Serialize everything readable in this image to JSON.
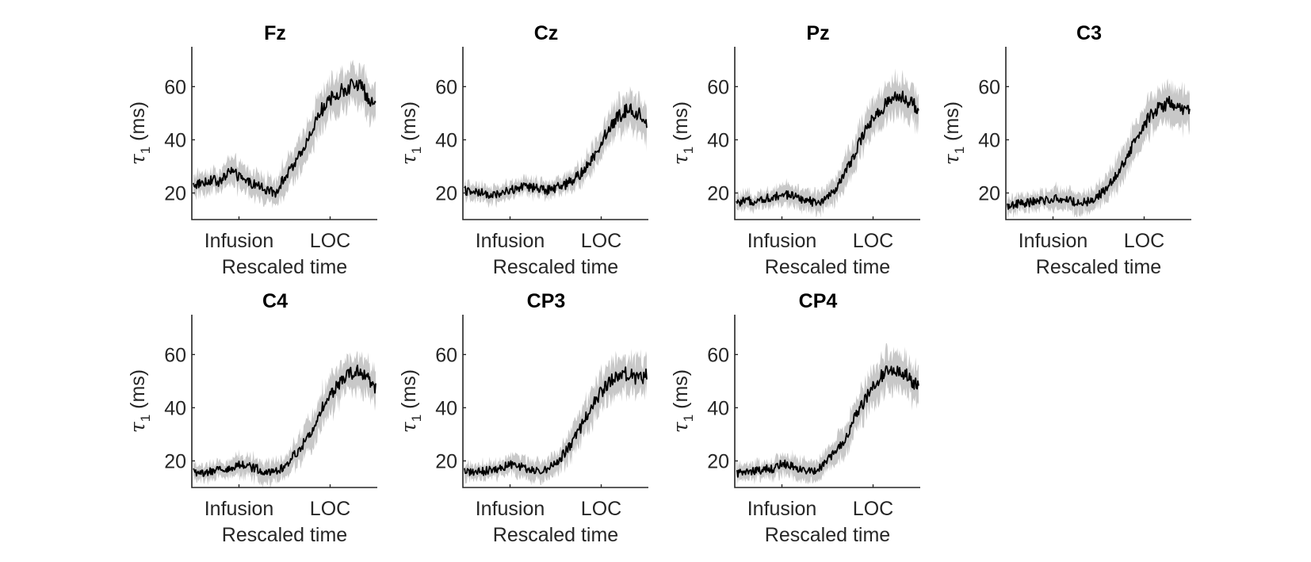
{
  "chart_data": {
    "type": "line",
    "layout": "small-multiples",
    "xlabel": "Rescaled time",
    "xtick_labels": [
      "Infusion",
      "LOC"
    ],
    "ylabel": "τ1 (ms)",
    "ylabel_parts": {
      "symbol": "τ",
      "subscript": "1",
      "unit": "(ms)"
    },
    "ylim": [
      10,
      75
    ],
    "yticks": [
      20,
      40,
      60
    ],
    "grid": false,
    "line_color": "#000000",
    "band_color": "#c8c8c8",
    "panels": [
      {
        "title": "Fz",
        "x": [
          0,
          0.05,
          0.1,
          0.15,
          0.2,
          0.25,
          0.3,
          0.35,
          0.4,
          0.45,
          0.5,
          0.55,
          0.6,
          0.65,
          0.7,
          0.75,
          0.8,
          0.85,
          0.9,
          0.95,
          1.0
        ],
        "mean": [
          23,
          24,
          25,
          24,
          29,
          26,
          24,
          23,
          21,
          20,
          26,
          30,
          36,
          44,
          51,
          55,
          58,
          60,
          61,
          57,
          53
        ],
        "band_halfwidth": [
          4,
          4,
          4,
          4,
          5,
          5,
          5,
          5,
          5,
          5,
          6,
          6,
          7,
          7,
          7,
          7,
          7,
          7,
          7,
          7,
          7
        ]
      },
      {
        "title": "Cz",
        "x": [
          0,
          0.05,
          0.1,
          0.15,
          0.2,
          0.25,
          0.3,
          0.35,
          0.4,
          0.45,
          0.5,
          0.55,
          0.6,
          0.65,
          0.7,
          0.75,
          0.8,
          0.85,
          0.9,
          0.95,
          1.0
        ],
        "mean": [
          21,
          20,
          20,
          19,
          20,
          21,
          22,
          22,
          22,
          21,
          22,
          23,
          25,
          28,
          33,
          39,
          45,
          49,
          52,
          50,
          47
        ],
        "band_halfwidth": [
          3,
          3,
          3,
          3,
          3,
          3,
          3,
          3,
          3,
          3,
          3,
          3,
          4,
          4,
          5,
          5,
          6,
          6,
          7,
          7,
          7
        ]
      },
      {
        "title": "Pz",
        "x": [
          0,
          0.05,
          0.1,
          0.15,
          0.2,
          0.25,
          0.3,
          0.35,
          0.4,
          0.45,
          0.5,
          0.55,
          0.6,
          0.65,
          0.7,
          0.75,
          0.8,
          0.85,
          0.9,
          0.95,
          1.0
        ],
        "mean": [
          16,
          17,
          17,
          18,
          18,
          20,
          19,
          18,
          17,
          16,
          18,
          22,
          28,
          35,
          42,
          48,
          52,
          55,
          56,
          54,
          52
        ],
        "band_halfwidth": [
          3,
          3,
          3,
          3,
          3,
          4,
          4,
          4,
          4,
          4,
          4,
          5,
          6,
          6,
          7,
          7,
          7,
          7,
          7,
          7,
          7
        ]
      },
      {
        "title": "C3",
        "x": [
          0,
          0.05,
          0.1,
          0.15,
          0.2,
          0.25,
          0.3,
          0.35,
          0.4,
          0.45,
          0.5,
          0.55,
          0.6,
          0.65,
          0.7,
          0.75,
          0.8,
          0.85,
          0.9,
          0.95,
          1.0
        ],
        "mean": [
          15,
          16,
          16,
          17,
          17,
          18,
          18,
          17,
          16,
          17,
          19,
          22,
          27,
          33,
          40,
          46,
          50,
          53,
          54,
          51,
          51
        ],
        "band_halfwidth": [
          3,
          3,
          3,
          3,
          3,
          4,
          4,
          4,
          4,
          4,
          4,
          5,
          6,
          6,
          7,
          7,
          7,
          7,
          7,
          7,
          7
        ]
      },
      {
        "title": "C4",
        "x": [
          0,
          0.05,
          0.1,
          0.15,
          0.2,
          0.25,
          0.3,
          0.35,
          0.4,
          0.45,
          0.5,
          0.55,
          0.6,
          0.65,
          0.7,
          0.75,
          0.8,
          0.85,
          0.9,
          0.95,
          1.0
        ],
        "mean": [
          16,
          15,
          16,
          17,
          17,
          19,
          18,
          17,
          16,
          16,
          18,
          22,
          26,
          32,
          39,
          45,
          49,
          52,
          54,
          52,
          47
        ],
        "band_halfwidth": [
          3,
          3,
          3,
          3,
          3,
          4,
          4,
          4,
          4,
          4,
          4,
          5,
          6,
          6,
          7,
          7,
          7,
          7,
          7,
          7,
          7
        ]
      },
      {
        "title": "CP3",
        "x": [
          0,
          0.05,
          0.1,
          0.15,
          0.2,
          0.25,
          0.3,
          0.35,
          0.4,
          0.45,
          0.5,
          0.55,
          0.6,
          0.65,
          0.7,
          0.75,
          0.8,
          0.85,
          0.9,
          0.95,
          1.0
        ],
        "mean": [
          16,
          16,
          16,
          17,
          17,
          19,
          18,
          17,
          16,
          17,
          19,
          23,
          28,
          34,
          41,
          46,
          50,
          52,
          53,
          51,
          52
        ],
        "band_halfwidth": [
          3,
          3,
          3,
          3,
          3,
          4,
          4,
          4,
          4,
          4,
          4,
          5,
          6,
          6,
          7,
          7,
          7,
          7,
          7,
          7,
          7
        ]
      },
      {
        "title": "CP4",
        "x": [
          0,
          0.05,
          0.1,
          0.15,
          0.2,
          0.25,
          0.3,
          0.35,
          0.4,
          0.45,
          0.5,
          0.55,
          0.6,
          0.65,
          0.7,
          0.75,
          0.8,
          0.85,
          0.9,
          0.95,
          1.0
        ],
        "mean": [
          15,
          16,
          16,
          17,
          17,
          19,
          18,
          17,
          16,
          17,
          20,
          24,
          29,
          36,
          42,
          48,
          52,
          55,
          54,
          51,
          48
        ],
        "band_halfwidth": [
          3,
          3,
          3,
          3,
          3,
          4,
          4,
          4,
          4,
          4,
          4,
          5,
          6,
          6,
          7,
          7,
          7,
          7,
          7,
          7,
          7
        ]
      }
    ],
    "xtick_positions": [
      0.25,
      0.75
    ]
  }
}
